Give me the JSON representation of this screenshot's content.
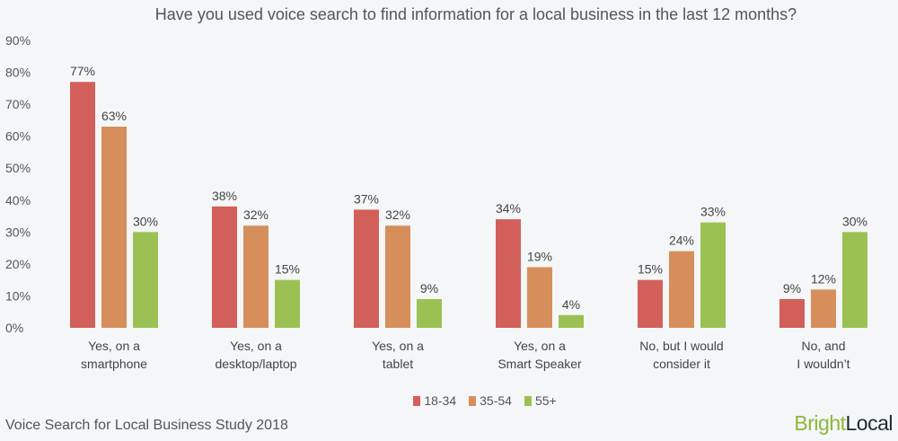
{
  "chart_data": {
    "type": "bar",
    "title": "Have you used voice search to find information for a local business in the last 12 months?",
    "categories": [
      [
        "Yes, on a",
        "smartphone"
      ],
      [
        "Yes, on a",
        "desktop/laptop"
      ],
      [
        "Yes, on a",
        "tablet"
      ],
      [
        "Yes, on a",
        "Smart Speaker"
      ],
      [
        "No, but I would",
        "consider it"
      ],
      [
        "No, and",
        "I wouldn’t"
      ]
    ],
    "series": [
      {
        "name": "18-34",
        "color": "#d35f5b",
        "values": [
          77,
          38,
          37,
          34,
          15,
          9
        ]
      },
      {
        "name": "35-54",
        "color": "#d68f5a",
        "values": [
          63,
          32,
          32,
          19,
          24,
          12
        ]
      },
      {
        "name": "55+",
        "color": "#9bc153",
        "values": [
          30,
          15,
          9,
          4,
          33,
          30
        ]
      }
    ],
    "yticks": [
      "0%",
      "10%",
      "20%",
      "30%",
      "40%",
      "50%",
      "60%",
      "70%",
      "80%",
      "90%"
    ],
    "ylim": [
      0,
      90
    ],
    "grid": false,
    "legend": "bottom",
    "data_label_suffix": "%"
  },
  "footer": "Voice Search for Local Business Study 2018",
  "logo": {
    "part1": "Bright",
    "part2": "Local"
  }
}
